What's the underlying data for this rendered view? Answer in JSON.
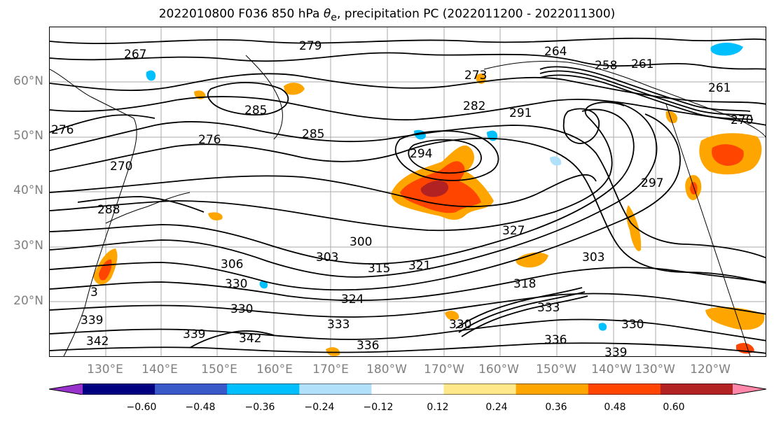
{
  "title_text": "2022010800 F036 850 hPa",
  "title_symbol": "θ",
  "title_sub": "e",
  "title_rest": ", precipitation PC (2022011200 - 2022011300)",
  "lat_labels": [
    "60°N",
    "50°N",
    "40°N",
    "30°N",
    "20°N"
  ],
  "lon_labels": [
    "130°E",
    "140°E",
    "150°E",
    "160°E",
    "170°E",
    "180°W",
    "170°W",
    "160°W",
    "150°W",
    "140°W",
    "130°W",
    "120°W"
  ],
  "colorbar": {
    "ticks": [
      "−0.60",
      "−0.48",
      "−0.36",
      "−0.24",
      "−0.12",
      "0.12",
      "0.24",
      "0.36",
      "0.48",
      "0.60"
    ],
    "colors": [
      "#9932cc",
      "#000080",
      "#3a59c8",
      "#00bfff",
      "#b0e0fa",
      "#ffffff",
      "#ffe88a",
      "#ffa500",
      "#ff4500",
      "#b22222",
      "#ff88aa"
    ]
  },
  "contour_labels": [
    "267",
    "279",
    "264",
    "258",
    "261",
    "261",
    "270",
    "276",
    "273",
    "285",
    "282",
    "291",
    "285",
    "294",
    "276",
    "270",
    "288",
    "297",
    "303",
    "300",
    "306",
    "315",
    "321",
    "303",
    "330",
    "327",
    "324",
    "318",
    "333",
    "330",
    "339",
    "342",
    "339",
    "342",
    "330",
    "336",
    "333",
    "336",
    "330",
    "339",
    "3"
  ]
}
